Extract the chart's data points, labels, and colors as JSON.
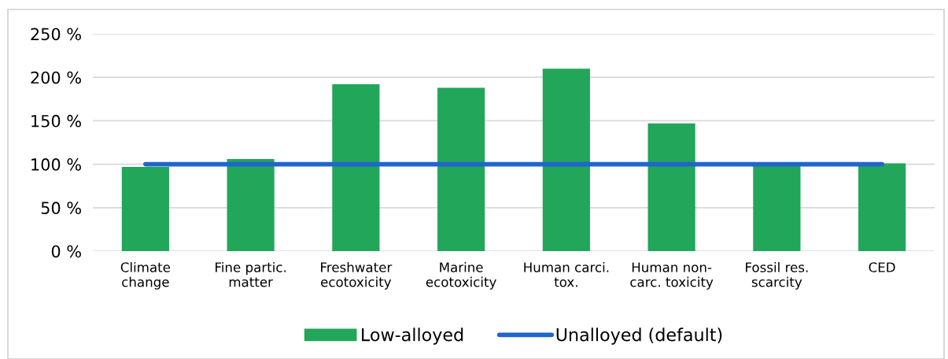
{
  "chart_data": {
    "type": "bar",
    "categories": [
      "Climate\nchange",
      "Fine partic.\nmatter",
      "Freshwater\necotoxicity",
      "Marine\necotoxicity",
      "Human carci.\ntox.",
      "Human non-\ncarc. toxicity",
      "Fossil res.\nscarcity",
      "CED"
    ],
    "series": [
      {
        "name": "Low-alloyed",
        "color": "#22a65a",
        "values": [
          97,
          106,
          192,
          188,
          210,
          147,
          100,
          101
        ]
      },
      {
        "name": "Unalloyed (default)",
        "type": "line",
        "color": "#1f66cc",
        "values": [
          100,
          100,
          100,
          100,
          100,
          100,
          100,
          100
        ]
      }
    ],
    "ylim": [
      0,
      250
    ],
    "yticks": [
      {
        "value": 0,
        "label": "0 %"
      },
      {
        "value": 50,
        "label": "50 %"
      },
      {
        "value": 100,
        "label": "100 %"
      },
      {
        "value": 150,
        "label": "150 %"
      },
      {
        "value": 200,
        "label": "200 %"
      },
      {
        "value": 250,
        "label": "250 %"
      }
    ],
    "grid": "y",
    "legend": "bottom",
    "marker": "none"
  }
}
